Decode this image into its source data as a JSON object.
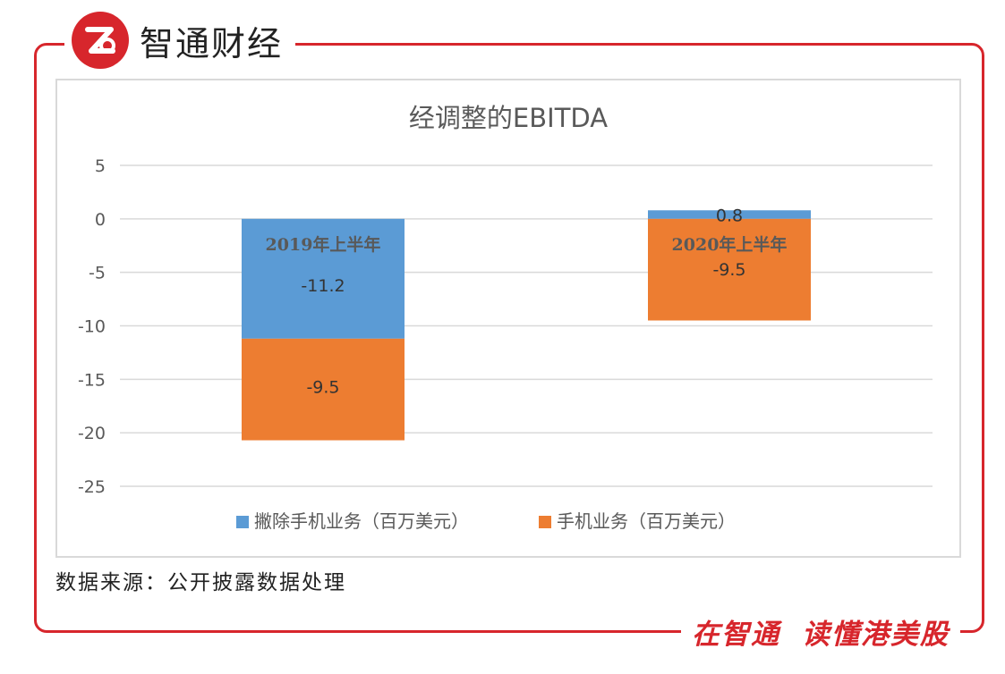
{
  "brand": {
    "name": "智通财经",
    "logo_glyph": "Z"
  },
  "source": "数据来源：公开披露数据处理",
  "footer": {
    "part1": "在智通",
    "part2": "读懂港美股"
  },
  "colors": {
    "blue": "#5b9bd5",
    "orange": "#ed7d31",
    "red": "#d7262c",
    "grid": "#d9d9d9"
  },
  "chart_data": {
    "type": "bar",
    "stacked": true,
    "title": "经调整的EBITDA",
    "categories": [
      "2019年上半年",
      "2020年上半年"
    ],
    "series": [
      {
        "name": "撇除手机业务（百万美元）",
        "values": [
          -11.2,
          0.8
        ],
        "color": "#5b9bd5"
      },
      {
        "name": "手机业务（百万美元）",
        "values": [
          -9.5,
          -9.5
        ],
        "color": "#ed7d31"
      }
    ],
    "data_labels": [
      [
        "-11.2",
        "0.8"
      ],
      [
        "-9.5",
        "-9.5"
      ]
    ],
    "ylim": [
      -25,
      5
    ],
    "yticks": [
      5,
      0,
      -5,
      -10,
      -15,
      -20,
      -25
    ],
    "grid": true,
    "legend": "bottom",
    "category_labels_inside_bars": true
  }
}
